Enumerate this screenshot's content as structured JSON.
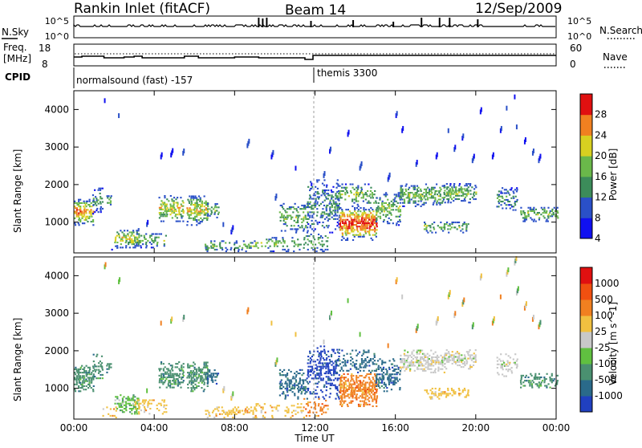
{
  "header": {
    "station": "Rankin Inlet (fitACF)",
    "beam": "Beam 14",
    "date": "12/Sep/2009"
  },
  "top_panel": {
    "left_label": "N.Sky",
    "left_ticks": [
      "10^5",
      "10^0"
    ],
    "right_ticks": [
      "10^5",
      "10^0"
    ],
    "right_label": "N.Search"
  },
  "freq_panel": {
    "left_label_1": "Freq.",
    "left_label_2": "[MHz]",
    "left_ticks": [
      "18",
      "8"
    ],
    "right_ticks": [
      "60",
      "0"
    ],
    "right_label": "Nave"
  },
  "cpid_panel": {
    "label": "CPID",
    "modes": [
      "normalsound (fast) -157",
      "themis 3300"
    ]
  },
  "chart_data": [
    {
      "type": "heatmap",
      "panel": "power",
      "ylabel": "Slant Range [km]",
      "yticks": [
        1000,
        2000,
        3000,
        4000
      ],
      "ylim": [
        180,
        4500
      ],
      "xlim_hours": [
        0,
        24
      ],
      "colorbar_label": "Power [dB]",
      "colorbar_ticks": [
        "28",
        "24",
        "20",
        "16",
        "12",
        "8",
        "4"
      ],
      "colors": [
        "#1010f0",
        "#2a50c8",
        "#3c8c5a",
        "#6ab84a",
        "#d8d020",
        "#f08020",
        "#e01010"
      ]
    },
    {
      "type": "heatmap",
      "panel": "velocity",
      "ylabel": "Slant Range [km]",
      "yticks": [
        1000,
        2000,
        3000,
        4000
      ],
      "ylim": [
        180,
        4500
      ],
      "xlim_hours": [
        0,
        24
      ],
      "colorbar_label": "Velocity [m s^-1]",
      "colorbar_ticks": [
        "1000",
        "500",
        "100",
        "25",
        "-25",
        "-100",
        "-500",
        "-1000"
      ],
      "colors": [
        "#2040c0",
        "#2a6a8a",
        "#4a9070",
        "#60c040",
        "#c8c8c8",
        "#f0c040",
        "#f08020",
        "#f05010",
        "#e01010"
      ]
    }
  ],
  "xaxis": {
    "ticks": [
      "00:00",
      "04:00",
      "08:00",
      "12:00",
      "16:00",
      "20:00",
      "00:00"
    ],
    "label": "Time UT"
  }
}
